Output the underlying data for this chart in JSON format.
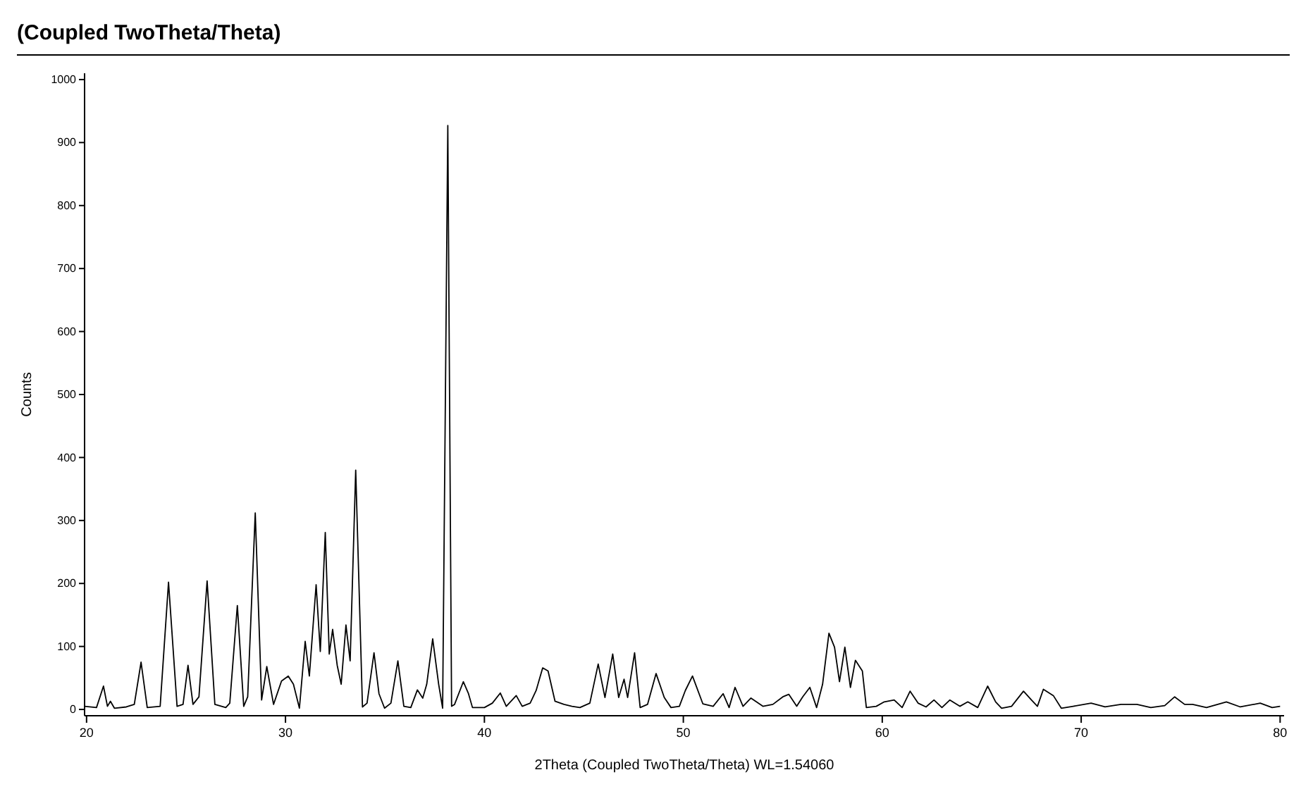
{
  "chart_data": {
    "type": "line",
    "title": "(Coupled TwoTheta/Theta)",
    "xlabel": "2Theta (Coupled TwoTheta/Theta) WL=1.54060",
    "ylabel": "Counts",
    "xlim": [
      19.9,
      80.2
    ],
    "xticks": [
      20,
      30,
      40,
      50,
      60,
      70,
      80
    ],
    "ylim": [
      -10,
      1010
    ],
    "yticks": [
      0,
      100,
      200,
      300,
      400,
      500,
      600,
      700,
      800,
      900,
      1000
    ],
    "grid": false,
    "marker": "none",
    "line_style": "solid",
    "series": [
      {
        "color": "#000000",
        "x": [
          19.9,
          20.5,
          20.85,
          21.05,
          21.2,
          21.4,
          22.0,
          22.4,
          22.74,
          23.05,
          23.7,
          24.12,
          24.55,
          24.85,
          25.1,
          25.35,
          25.65,
          26.06,
          26.45,
          27.0,
          27.2,
          27.58,
          27.9,
          28.1,
          28.48,
          28.8,
          29.06,
          29.4,
          29.8,
          30.14,
          30.4,
          30.7,
          30.99,
          31.2,
          31.54,
          31.75,
          32.0,
          32.2,
          32.37,
          32.6,
          32.8,
          33.04,
          33.25,
          33.53,
          33.87,
          34.1,
          34.45,
          34.7,
          34.98,
          35.3,
          35.65,
          35.95,
          36.3,
          36.63,
          36.9,
          37.1,
          37.4,
          37.7,
          37.9,
          38.16,
          38.35,
          38.5,
          38.94,
          39.2,
          39.4,
          40.0,
          40.4,
          40.8,
          41.1,
          41.6,
          41.9,
          42.3,
          42.6,
          42.93,
          43.2,
          43.55,
          44.0,
          44.4,
          44.8,
          45.3,
          45.72,
          46.06,
          46.45,
          46.75,
          47.02,
          47.2,
          47.55,
          47.83,
          48.2,
          48.63,
          49.04,
          49.38,
          49.8,
          50.1,
          50.46,
          50.98,
          51.5,
          52.0,
          52.3,
          52.6,
          53.0,
          53.4,
          54.0,
          54.5,
          55.0,
          55.3,
          55.7,
          56.0,
          56.36,
          56.7,
          57.0,
          57.32,
          57.6,
          57.85,
          58.12,
          58.4,
          58.65,
          59.0,
          59.2,
          59.7,
          60.1,
          60.6,
          61.0,
          61.4,
          61.8,
          62.2,
          62.6,
          63.0,
          63.4,
          63.9,
          64.3,
          64.8,
          65.3,
          65.7,
          66.0,
          66.5,
          67.1,
          67.5,
          67.8,
          68.1,
          68.6,
          69.0,
          69.6,
          70.5,
          71.2,
          72.0,
          72.8,
          73.5,
          74.2,
          74.7,
          75.2,
          75.6,
          76.3,
          77.3,
          78.0,
          79.0,
          79.6,
          80.0
        ],
        "values": [
          5,
          3,
          37,
          5,
          13,
          2,
          4,
          8,
          75,
          3,
          5,
          202,
          5,
          8,
          70,
          8,
          20,
          204,
          8,
          3,
          10,
          165,
          5,
          20,
          312,
          15,
          68,
          8,
          45,
          53,
          40,
          2,
          108,
          53,
          198,
          92,
          281,
          88,
          127,
          70,
          40,
          134,
          77,
          380,
          4,
          10,
          90,
          25,
          2,
          10,
          77,
          5,
          3,
          31,
          18,
          40,
          112,
          40,
          2,
          927,
          5,
          8,
          44,
          25,
          3,
          3,
          10,
          26,
          5,
          22,
          5,
          10,
          30,
          66,
          61,
          13,
          8,
          5,
          3,
          10,
          72,
          19,
          88,
          19,
          48,
          19,
          90,
          3,
          8,
          57,
          19,
          3,
          5,
          30,
          53,
          9,
          5,
          25,
          3,
          35,
          5,
          18,
          5,
          8,
          20,
          24,
          5,
          20,
          35,
          3,
          40,
          121,
          99,
          44,
          99,
          35,
          78,
          61,
          3,
          5,
          12,
          15,
          3,
          29,
          10,
          4,
          15,
          3,
          15,
          5,
          12,
          3,
          37,
          12,
          2,
          5,
          29,
          15,
          5,
          32,
          22,
          2,
          5,
          10,
          4,
          8,
          8,
          3,
          6,
          20,
          8,
          8,
          3,
          12,
          4,
          10,
          3,
          5
        ]
      }
    ]
  }
}
